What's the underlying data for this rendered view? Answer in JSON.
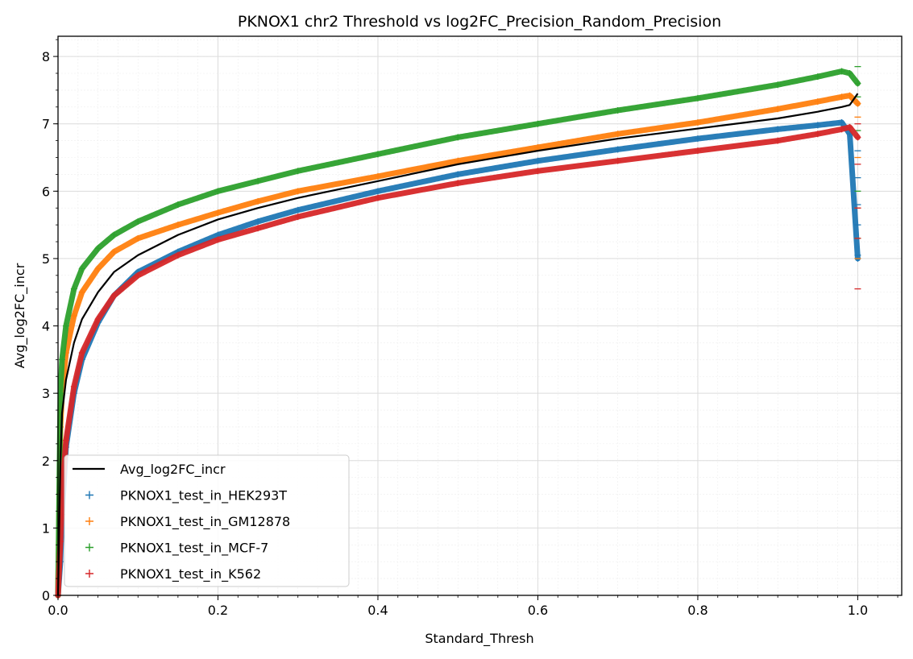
{
  "chart_data": {
    "type": "line",
    "title": "PKNOX1 chr2 Threshold vs log2FC_Precision_Random_Precision",
    "xlabel": "Standard_Thresh",
    "ylabel": "Avg_log2FC_incr",
    "xlim": [
      0,
      1.055
    ],
    "ylim": [
      0,
      8.3
    ],
    "x_ticks": [
      0.0,
      0.2,
      0.4,
      0.6,
      0.8,
      1.0
    ],
    "x_tick_labels": [
      "0.0",
      "0.2",
      "0.4",
      "0.6",
      "0.8",
      "1.0"
    ],
    "y_ticks": [
      0,
      1,
      2,
      3,
      4,
      5,
      6,
      7,
      8
    ],
    "y_tick_labels": [
      "0",
      "1",
      "2",
      "3",
      "4",
      "5",
      "6",
      "7",
      "8"
    ],
    "grid": true,
    "legend_position": "lower-left",
    "series": [
      {
        "name": "Avg_log2FC_incr",
        "style": "line",
        "color": "#000000",
        "x": [
          0.0,
          0.003,
          0.005,
          0.01,
          0.02,
          0.03,
          0.05,
          0.07,
          0.1,
          0.15,
          0.2,
          0.25,
          0.3,
          0.4,
          0.5,
          0.6,
          0.7,
          0.8,
          0.9,
          0.95,
          0.98,
          0.99,
          1.0
        ],
        "y": [
          0.0,
          2.0,
          2.7,
          3.2,
          3.75,
          4.1,
          4.5,
          4.8,
          5.05,
          5.35,
          5.58,
          5.75,
          5.9,
          6.15,
          6.4,
          6.6,
          6.78,
          6.93,
          7.08,
          7.18,
          7.25,
          7.28,
          7.45
        ]
      },
      {
        "name": "PKNOX1_test_in_HEK293T",
        "style": "marker",
        "color": "#1f77b4",
        "x": [
          0.0,
          0.003,
          0.005,
          0.01,
          0.02,
          0.03,
          0.05,
          0.07,
          0.1,
          0.15,
          0.2,
          0.25,
          0.3,
          0.4,
          0.5,
          0.6,
          0.7,
          0.8,
          0.9,
          0.95,
          0.98,
          0.99,
          1.0
        ],
        "y": [
          0.0,
          0.5,
          1.2,
          2.2,
          3.0,
          3.5,
          4.05,
          4.45,
          4.8,
          5.1,
          5.35,
          5.55,
          5.72,
          6.0,
          6.25,
          6.45,
          6.62,
          6.78,
          6.92,
          6.98,
          7.02,
          6.85,
          5.0
        ],
        "outliers_at_x1": [
          5.8,
          5.5,
          5.05,
          6.2,
          6.6
        ]
      },
      {
        "name": "PKNOX1_test_in_GM12878",
        "style": "marker",
        "color": "#ff7f0e",
        "x": [
          0.0,
          0.003,
          0.005,
          0.01,
          0.02,
          0.03,
          0.05,
          0.07,
          0.1,
          0.15,
          0.2,
          0.25,
          0.3,
          0.4,
          0.5,
          0.6,
          0.7,
          0.8,
          0.9,
          0.95,
          0.98,
          0.99,
          1.0
        ],
        "y": [
          0.0,
          2.5,
          3.0,
          3.6,
          4.15,
          4.5,
          4.85,
          5.1,
          5.3,
          5.5,
          5.68,
          5.85,
          6.0,
          6.22,
          6.45,
          6.65,
          6.85,
          7.02,
          7.22,
          7.33,
          7.4,
          7.42,
          7.3
        ],
        "outliers_at_x1": [
          5.0,
          5.3,
          5.75,
          6.5,
          7.1
        ]
      },
      {
        "name": "PKNOX1_test_in_MCF-7",
        "style": "marker",
        "color": "#2ca02c",
        "x": [
          0.0,
          0.003,
          0.005,
          0.01,
          0.02,
          0.03,
          0.05,
          0.07,
          0.1,
          0.15,
          0.2,
          0.25,
          0.3,
          0.4,
          0.5,
          0.6,
          0.7,
          0.8,
          0.9,
          0.95,
          0.98,
          0.99,
          1.0
        ],
        "y": [
          0.0,
          3.0,
          3.5,
          4.0,
          4.55,
          4.85,
          5.15,
          5.35,
          5.55,
          5.8,
          6.0,
          6.15,
          6.3,
          6.55,
          6.8,
          7.0,
          7.2,
          7.38,
          7.58,
          7.7,
          7.78,
          7.75,
          7.6
        ],
        "outliers_at_x1": [
          7.85,
          6.0,
          5.3,
          6.9,
          7.4
        ]
      },
      {
        "name": "PKNOX1_test_in_K562",
        "style": "marker",
        "color": "#d62728",
        "x": [
          0.0,
          0.003,
          0.005,
          0.01,
          0.02,
          0.03,
          0.05,
          0.07,
          0.1,
          0.15,
          0.2,
          0.25,
          0.3,
          0.4,
          0.5,
          0.6,
          0.7,
          0.8,
          0.9,
          0.95,
          0.98,
          0.99,
          1.0
        ],
        "y": [
          0.0,
          0.8,
          1.5,
          2.3,
          3.1,
          3.6,
          4.1,
          4.45,
          4.75,
          5.05,
          5.28,
          5.45,
          5.62,
          5.9,
          6.12,
          6.3,
          6.45,
          6.6,
          6.75,
          6.85,
          6.92,
          6.95,
          6.8
        ],
        "outliers_at_x1": [
          4.55,
          5.3,
          5.75,
          6.4,
          7.0
        ]
      }
    ]
  }
}
